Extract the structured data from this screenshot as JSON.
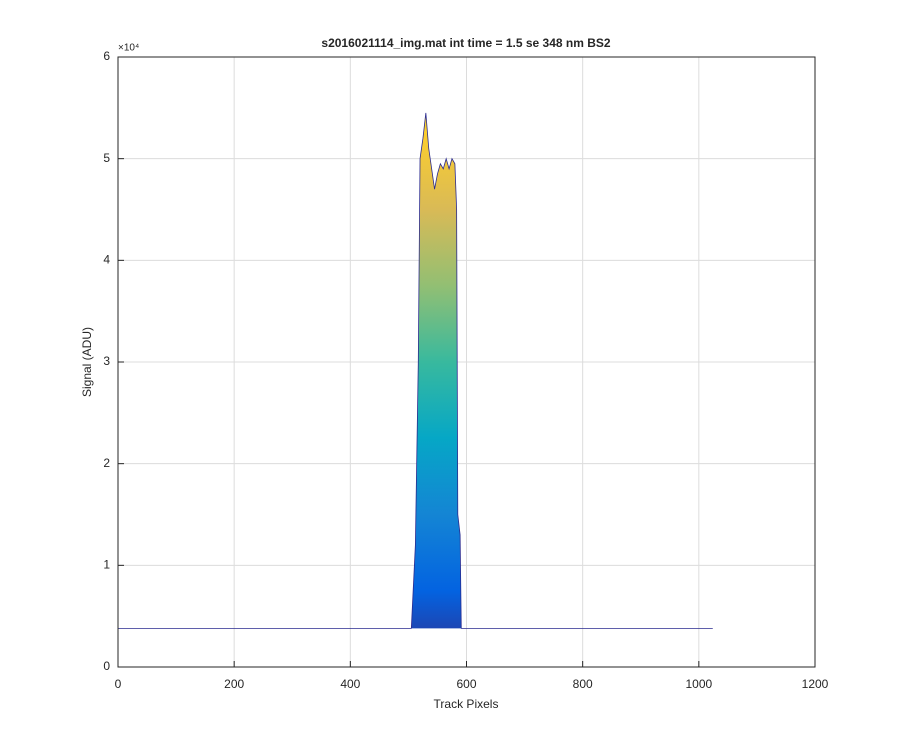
{
  "chart_data": {
    "type": "area",
    "title": "s2016021114_img.mat int time = 1.5 se  348 nm BS2",
    "x_label": "Track Pixels",
    "y_label": "Signal (ADU)",
    "y_exponent_label": "×10⁴",
    "x": [
      0,
      505,
      512,
      517,
      520,
      525,
      530,
      535,
      540,
      545,
      550,
      555,
      560,
      565,
      570,
      575,
      580,
      583,
      585,
      589,
      591,
      1024
    ],
    "series": [
      {
        "color": "#2a2a8f",
        "values": [
          3800,
          3800,
          12000,
          30000,
          50000,
          52000,
          54500,
          51000,
          49000,
          47000,
          48500,
          49500,
          49000,
          50000,
          49000,
          50000,
          49500,
          45000,
          15000,
          13000,
          3800,
          3800
        ]
      }
    ],
    "colormap": [
      "#352a87",
      "#0363e1",
      "#1485d4",
      "#06a7c6",
      "#38b99e",
      "#92bf73",
      "#d9ba56",
      "#fcce2e",
      "#f9fb0e"
    ],
    "xlim": [
      0,
      1200
    ],
    "xticks": [
      0,
      200,
      400,
      600,
      800,
      1000,
      1200
    ],
    "ylim": [
      0,
      60000
    ],
    "yticks": [
      {
        "value": 0,
        "label": "0"
      },
      {
        "value": 10000,
        "label": "1"
      },
      {
        "value": 20000,
        "label": "2"
      },
      {
        "value": 30000,
        "label": "3"
      },
      {
        "value": 40000,
        "label": "4"
      },
      {
        "value": 50000,
        "label": "5"
      },
      {
        "value": 60000,
        "label": "6"
      }
    ],
    "grid": true
  }
}
